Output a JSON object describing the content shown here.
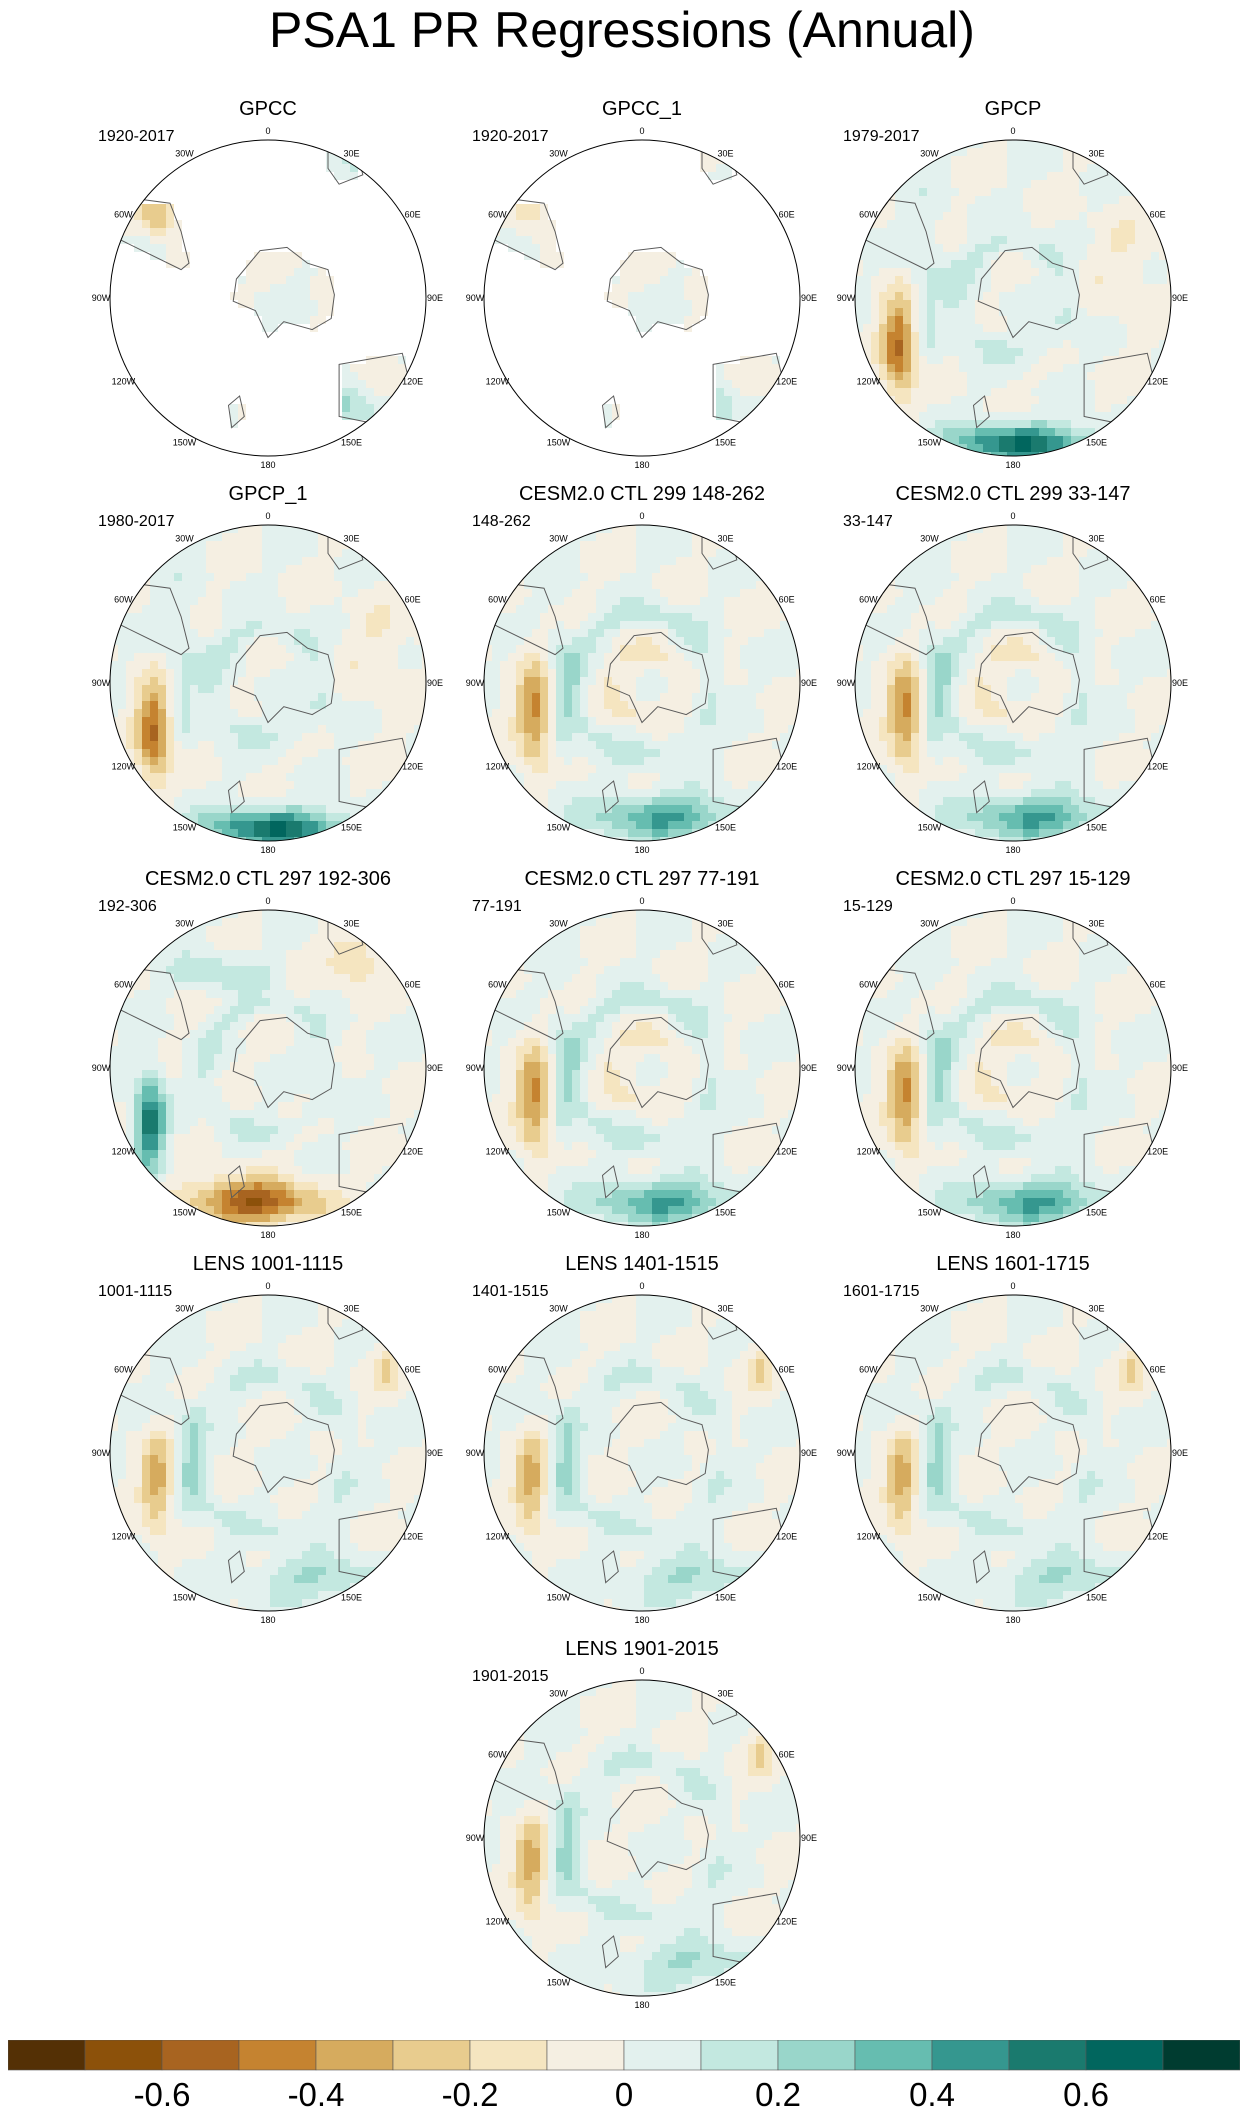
{
  "title": "PSA1 PR Regressions (Annual)",
  "panels": [
    {
      "title": "GPCC",
      "period": "1920-2017",
      "coverage": "land",
      "pattern": "gpcc"
    },
    {
      "title": "GPCC_1",
      "period": "1920-2017",
      "coverage": "land",
      "pattern": "gpcc1"
    },
    {
      "title": "GPCP",
      "period": "1979-2017",
      "coverage": "full",
      "pattern": "gpcp"
    },
    {
      "title": "GPCP_1",
      "period": "1980-2017",
      "coverage": "full",
      "pattern": "gpcp"
    },
    {
      "title": "CESM2.0 CTL 299 148-262",
      "period": "148-262",
      "coverage": "full",
      "pattern": "cesm_a"
    },
    {
      "title": "CESM2.0 CTL 299 33-147",
      "period": "33-147",
      "coverage": "full",
      "pattern": "cesm_a"
    },
    {
      "title": "CESM2.0 CTL 297 192-306",
      "period": "192-306",
      "coverage": "full",
      "pattern": "cesm_b"
    },
    {
      "title": "CESM2.0 CTL 297 77-191",
      "period": "77-191",
      "coverage": "full",
      "pattern": "cesm_a"
    },
    {
      "title": "CESM2.0 CTL 297 15-129",
      "period": "15-129",
      "coverage": "full",
      "pattern": "cesm_a"
    },
    {
      "title": "LENS 1001-1115",
      "period": "1001-1115",
      "coverage": "full",
      "pattern": "lens"
    },
    {
      "title": "LENS 1401-1515",
      "period": "1401-1515",
      "coverage": "full",
      "pattern": "lens"
    },
    {
      "title": "LENS 1601-1715",
      "period": "1601-1715",
      "coverage": "full",
      "pattern": "lens"
    },
    {
      "title": "LENS 1901-2015",
      "period": "1901-2015",
      "coverage": "full",
      "pattern": "lens"
    }
  ],
  "longitude_labels": [
    "0",
    "30E",
    "60E",
    "90E",
    "120E",
    "150E",
    "180",
    "150W",
    "120W",
    "90W",
    "60W",
    "30W"
  ],
  "colorbar": {
    "colors": [
      "#543005",
      "#8c510a",
      "#a86420",
      "#c58330",
      "#d6ab5e",
      "#e8cc8e",
      "#f5e5c0",
      "#f5efe2",
      "#e3f1ee",
      "#c3e8e0",
      "#99d6ca",
      "#66bdb0",
      "#35978f",
      "#1a7a6e",
      "#01665e",
      "#003c30"
    ],
    "tick_labels": [
      "-0.6",
      "-0.4",
      "-0.2",
      "0",
      "0.2",
      "0.4",
      "0.6"
    ]
  },
  "colors": {
    "land_outline": "#5a5a5a",
    "map_border": "#000000",
    "missing": "#ffffff"
  }
}
